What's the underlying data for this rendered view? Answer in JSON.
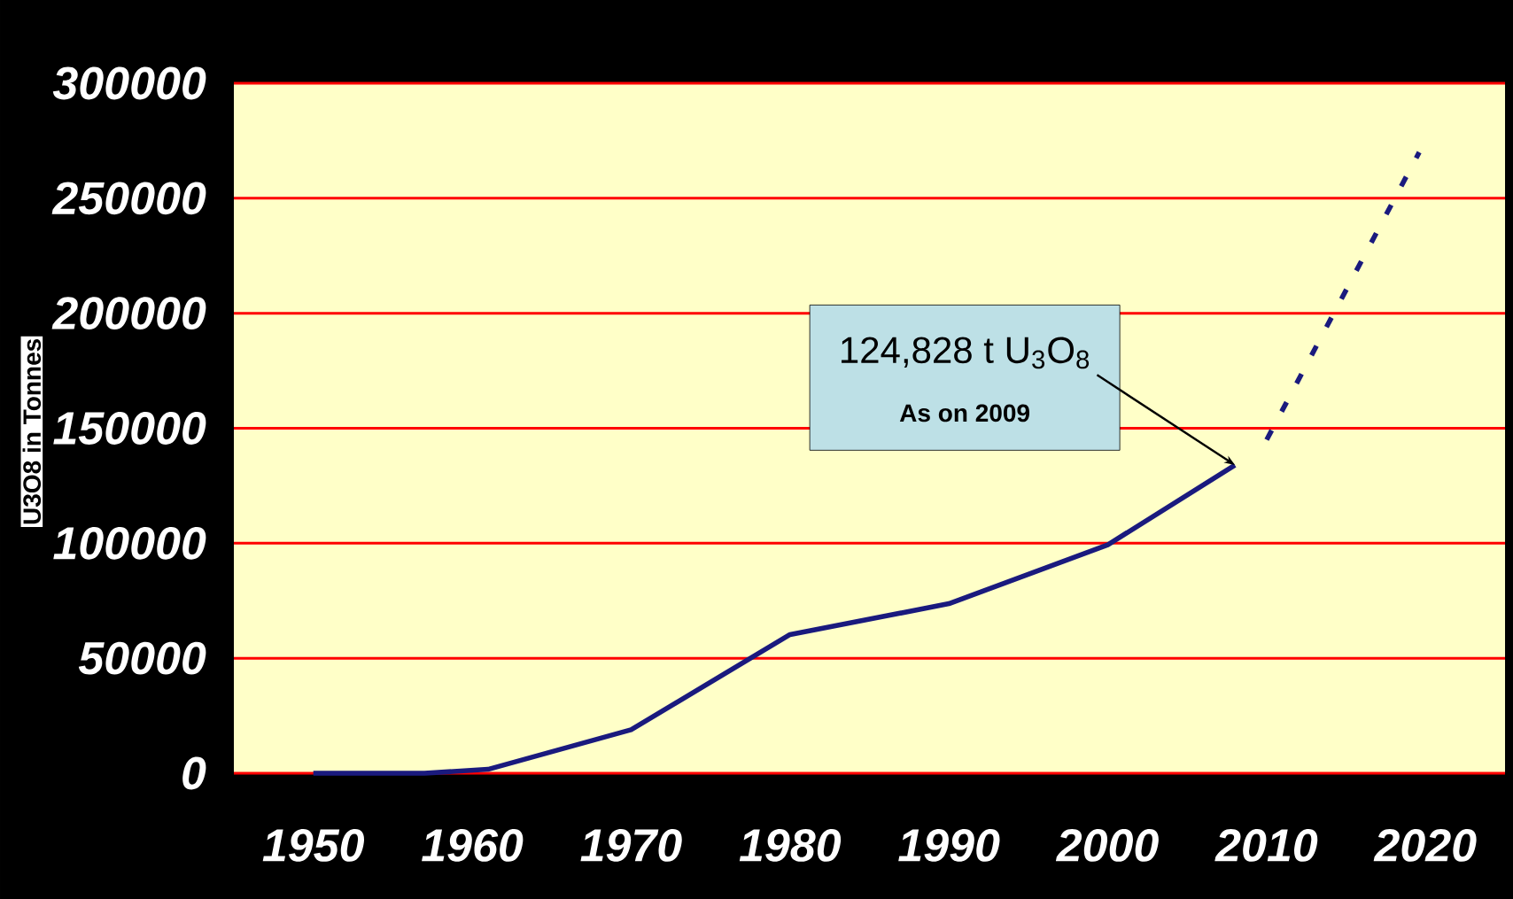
{
  "chart_data": {
    "type": "line",
    "ylabel": "U3O8 in Tonnes",
    "xlim": [
      1945,
      2025
    ],
    "xticks": [
      1950,
      1960,
      1970,
      1980,
      1990,
      2000,
      2010,
      2020
    ],
    "ylim": [
      0,
      300000
    ],
    "yticks": [
      0,
      50000,
      100000,
      150000,
      200000,
      250000,
      300000
    ],
    "grid": "y",
    "marker": "none",
    "series": [
      {
        "color": "#1a1a7e",
        "line_style": "solid",
        "x": [
          1950,
          1957,
          1961,
          1970,
          1980,
          1990,
          2000,
          2008
        ],
        "values": [
          0,
          0,
          1700,
          18900,
          60300,
          73700,
          99300,
          134000
        ]
      },
      {
        "color": "#1a1a7e",
        "line_style": "dashed",
        "x": [
          2010,
          2019.6
        ],
        "values": [
          145000,
          270000
        ]
      }
    ],
    "annotations": [
      {
        "text": "124,828 t U$_{3}$O$_{8}$",
        "x": 2008,
        "y": 134000
      },
      "As on  2009"
    ]
  }
}
